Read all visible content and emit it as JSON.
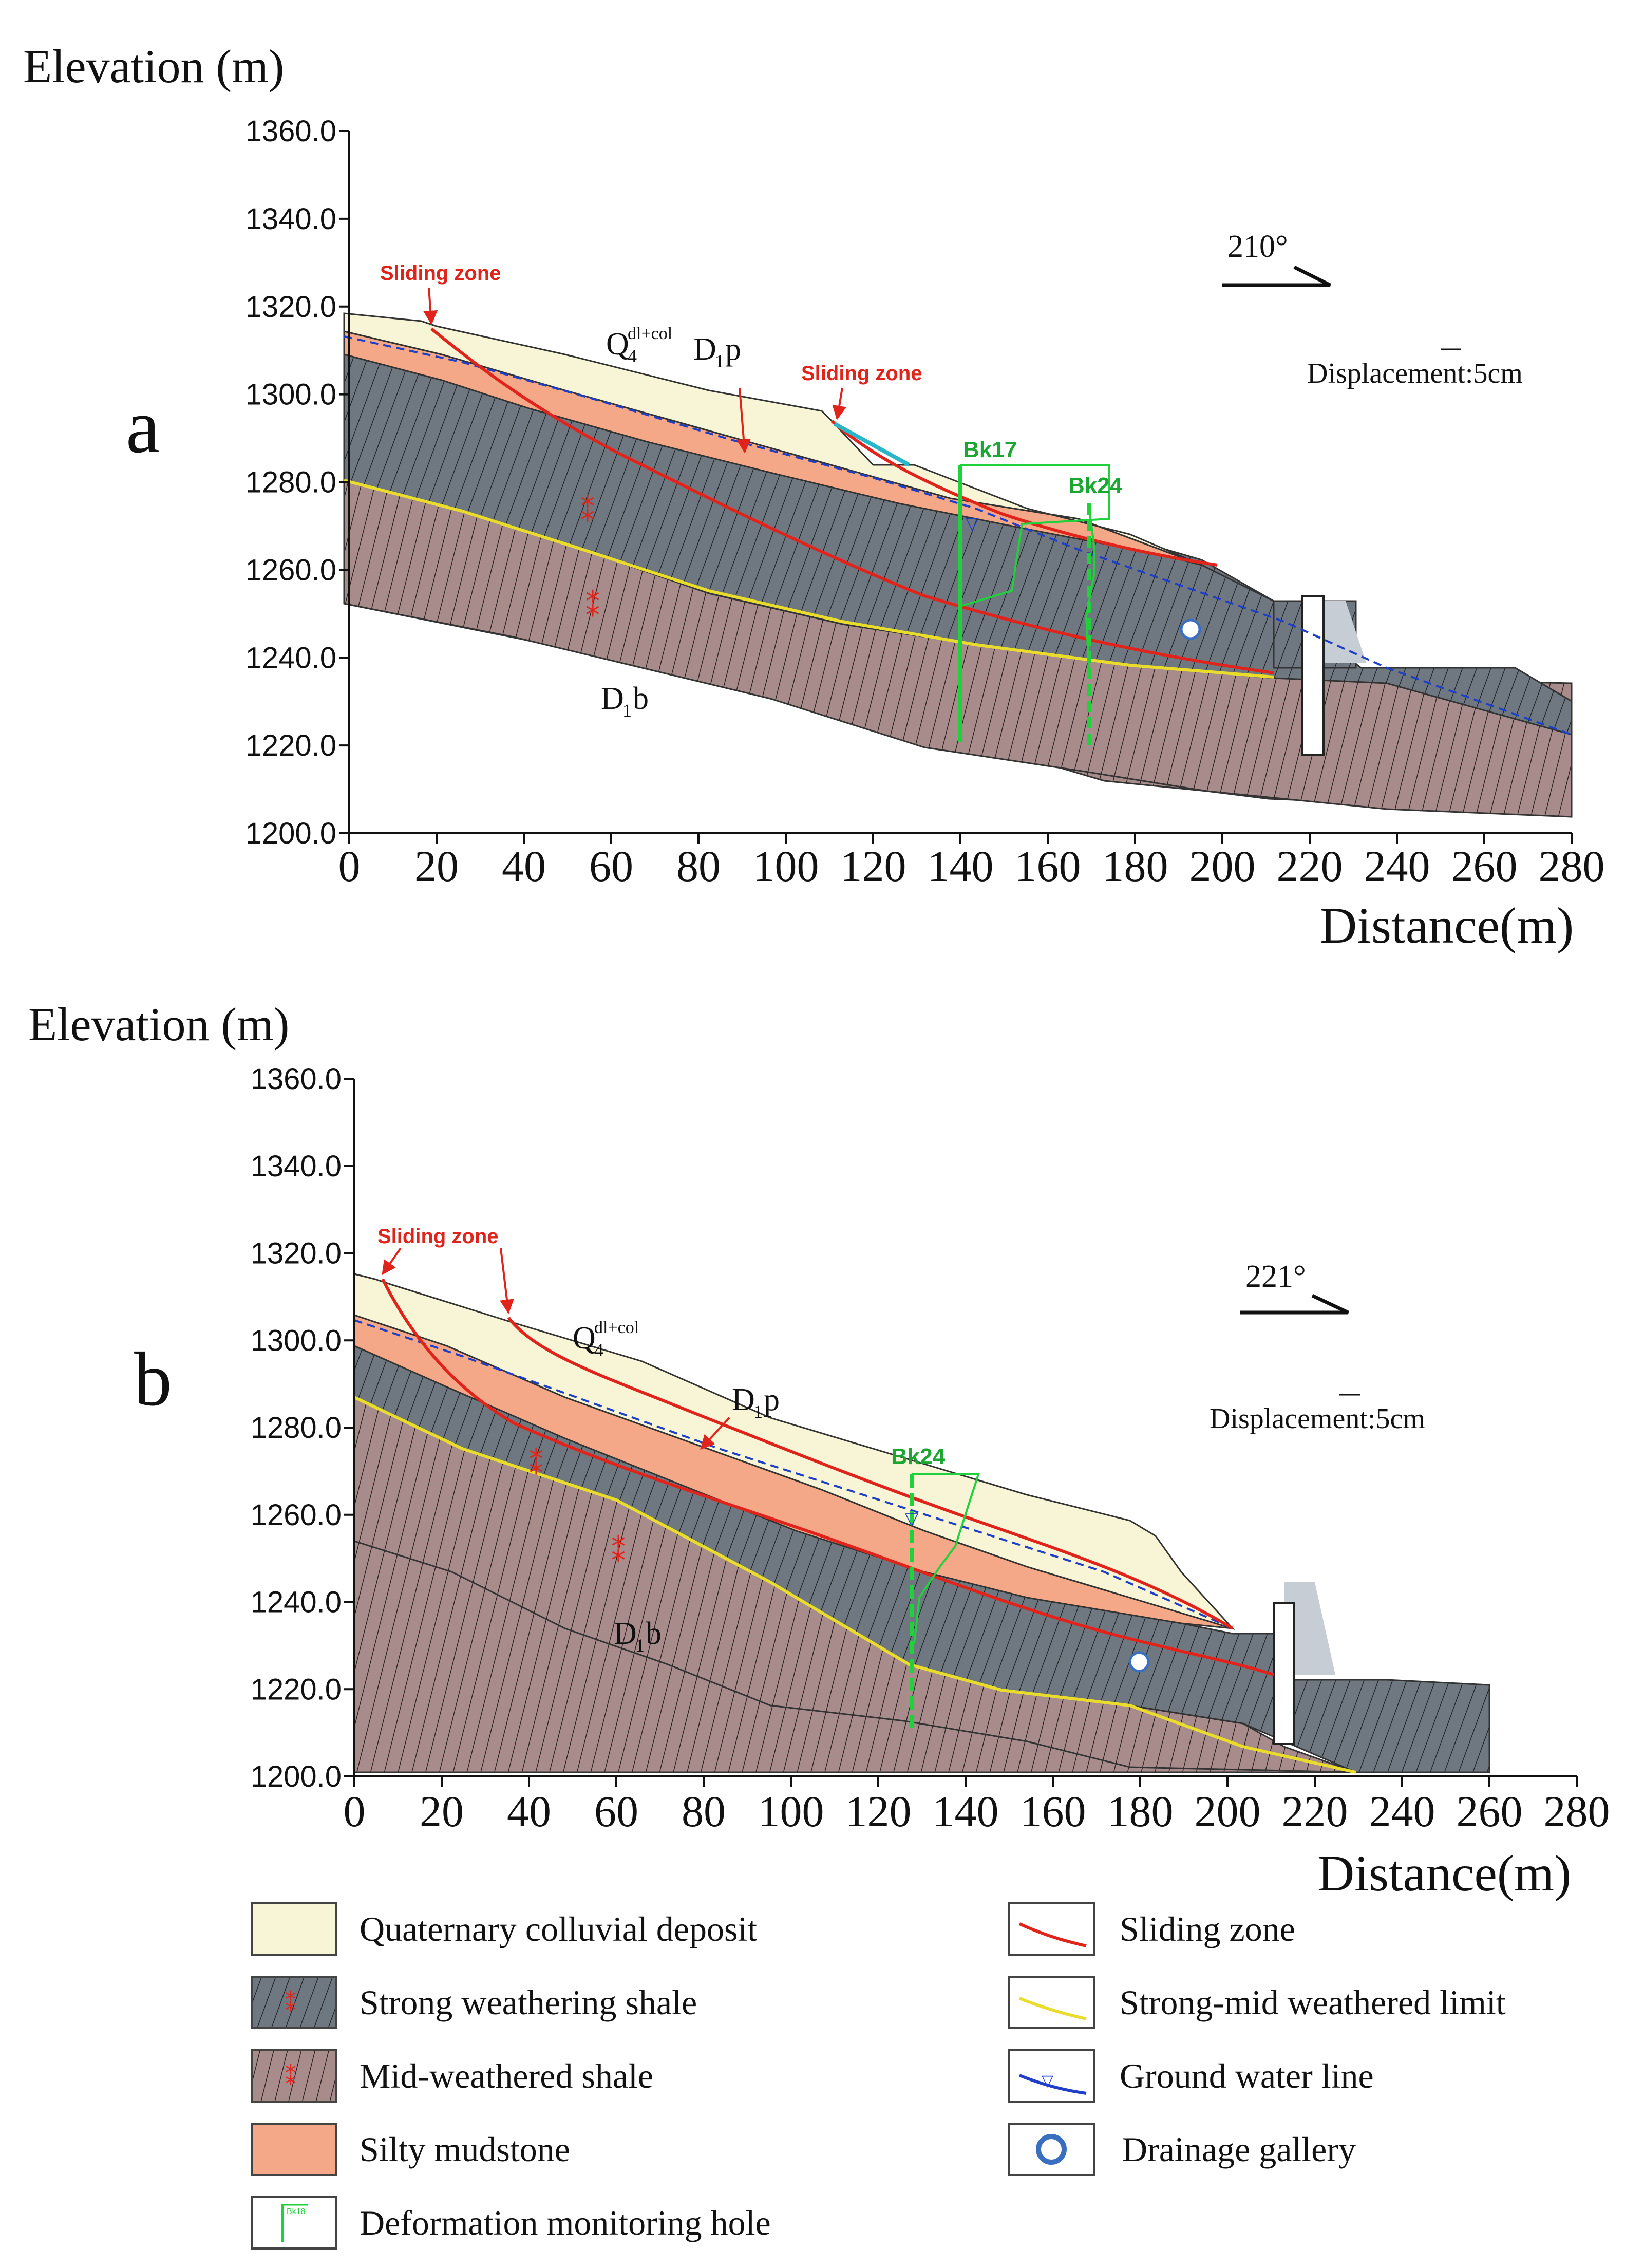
{
  "axes": {
    "y_title": "Elevation (m)",
    "x_title": "Distance(m)",
    "y_ticks": [
      "1360.0",
      "1340.0",
      "1320.0",
      "1300.0",
      "1280.0",
      "1260.0",
      "1240.0",
      "1220.0",
      "1200.0"
    ],
    "x_ticks": [
      "0",
      "20",
      "40",
      "60",
      "80",
      "100",
      "120",
      "140",
      "160",
      "180",
      "200",
      "220",
      "240",
      "260",
      "280"
    ],
    "y_range": [
      1200,
      1360
    ],
    "x_range": [
      0,
      280
    ]
  },
  "panel_a": {
    "letter": "a",
    "direction": "210°",
    "displacement": "Displacement:5cm",
    "sliding_zone_label": "Sliding zone",
    "q4_base": "Q",
    "q4_sub": "4",
    "q4_sup": "dl+col",
    "d1p_base": "D",
    "d1p_sub": "1",
    "d1p_tail": "p",
    "d1b_base": "D",
    "d1b_sub": "1",
    "d1b_tail": "b",
    "bk17": "Bk17",
    "bk24": "Bk24"
  },
  "panel_b": {
    "letter": "b",
    "direction": "221°",
    "displacement": "Displacement:5cm",
    "sliding_zone_label": "Sliding zone",
    "q4_base": "Q",
    "q4_sub": "4",
    "q4_sup": "dl+col",
    "d1p_base": "D",
    "d1p_sub": "1",
    "d1p_tail": "p",
    "d1b_base": "D",
    "d1b_sub": "1",
    "d1b_tail": "b",
    "bk24": "Bk24"
  },
  "legend": {
    "left": [
      "Quaternary colluvial deposit",
      "Strong weathering shale",
      "Mid-weathered shale",
      "Silty mudstone",
      "Deformation monitoring hole"
    ],
    "right": [
      "Sliding zone",
      "Strong-mid weathered limit",
      "Ground water line",
      "Drainage gallery"
    ],
    "mini_hole_label": "Bk18"
  },
  "colors": {
    "colluvial": "#f7f5d6",
    "strong_shale": "#6f7880",
    "mid_shale": "#a88c8c",
    "silty_mudstone": "#f4a887",
    "sliding_zone": "#e0241b",
    "weathered_limit": "#e9dc2b",
    "ground_water": "#1f3fc8",
    "monitoring_hole": "#1fd13a",
    "drainage": "#3a6fc0"
  }
}
